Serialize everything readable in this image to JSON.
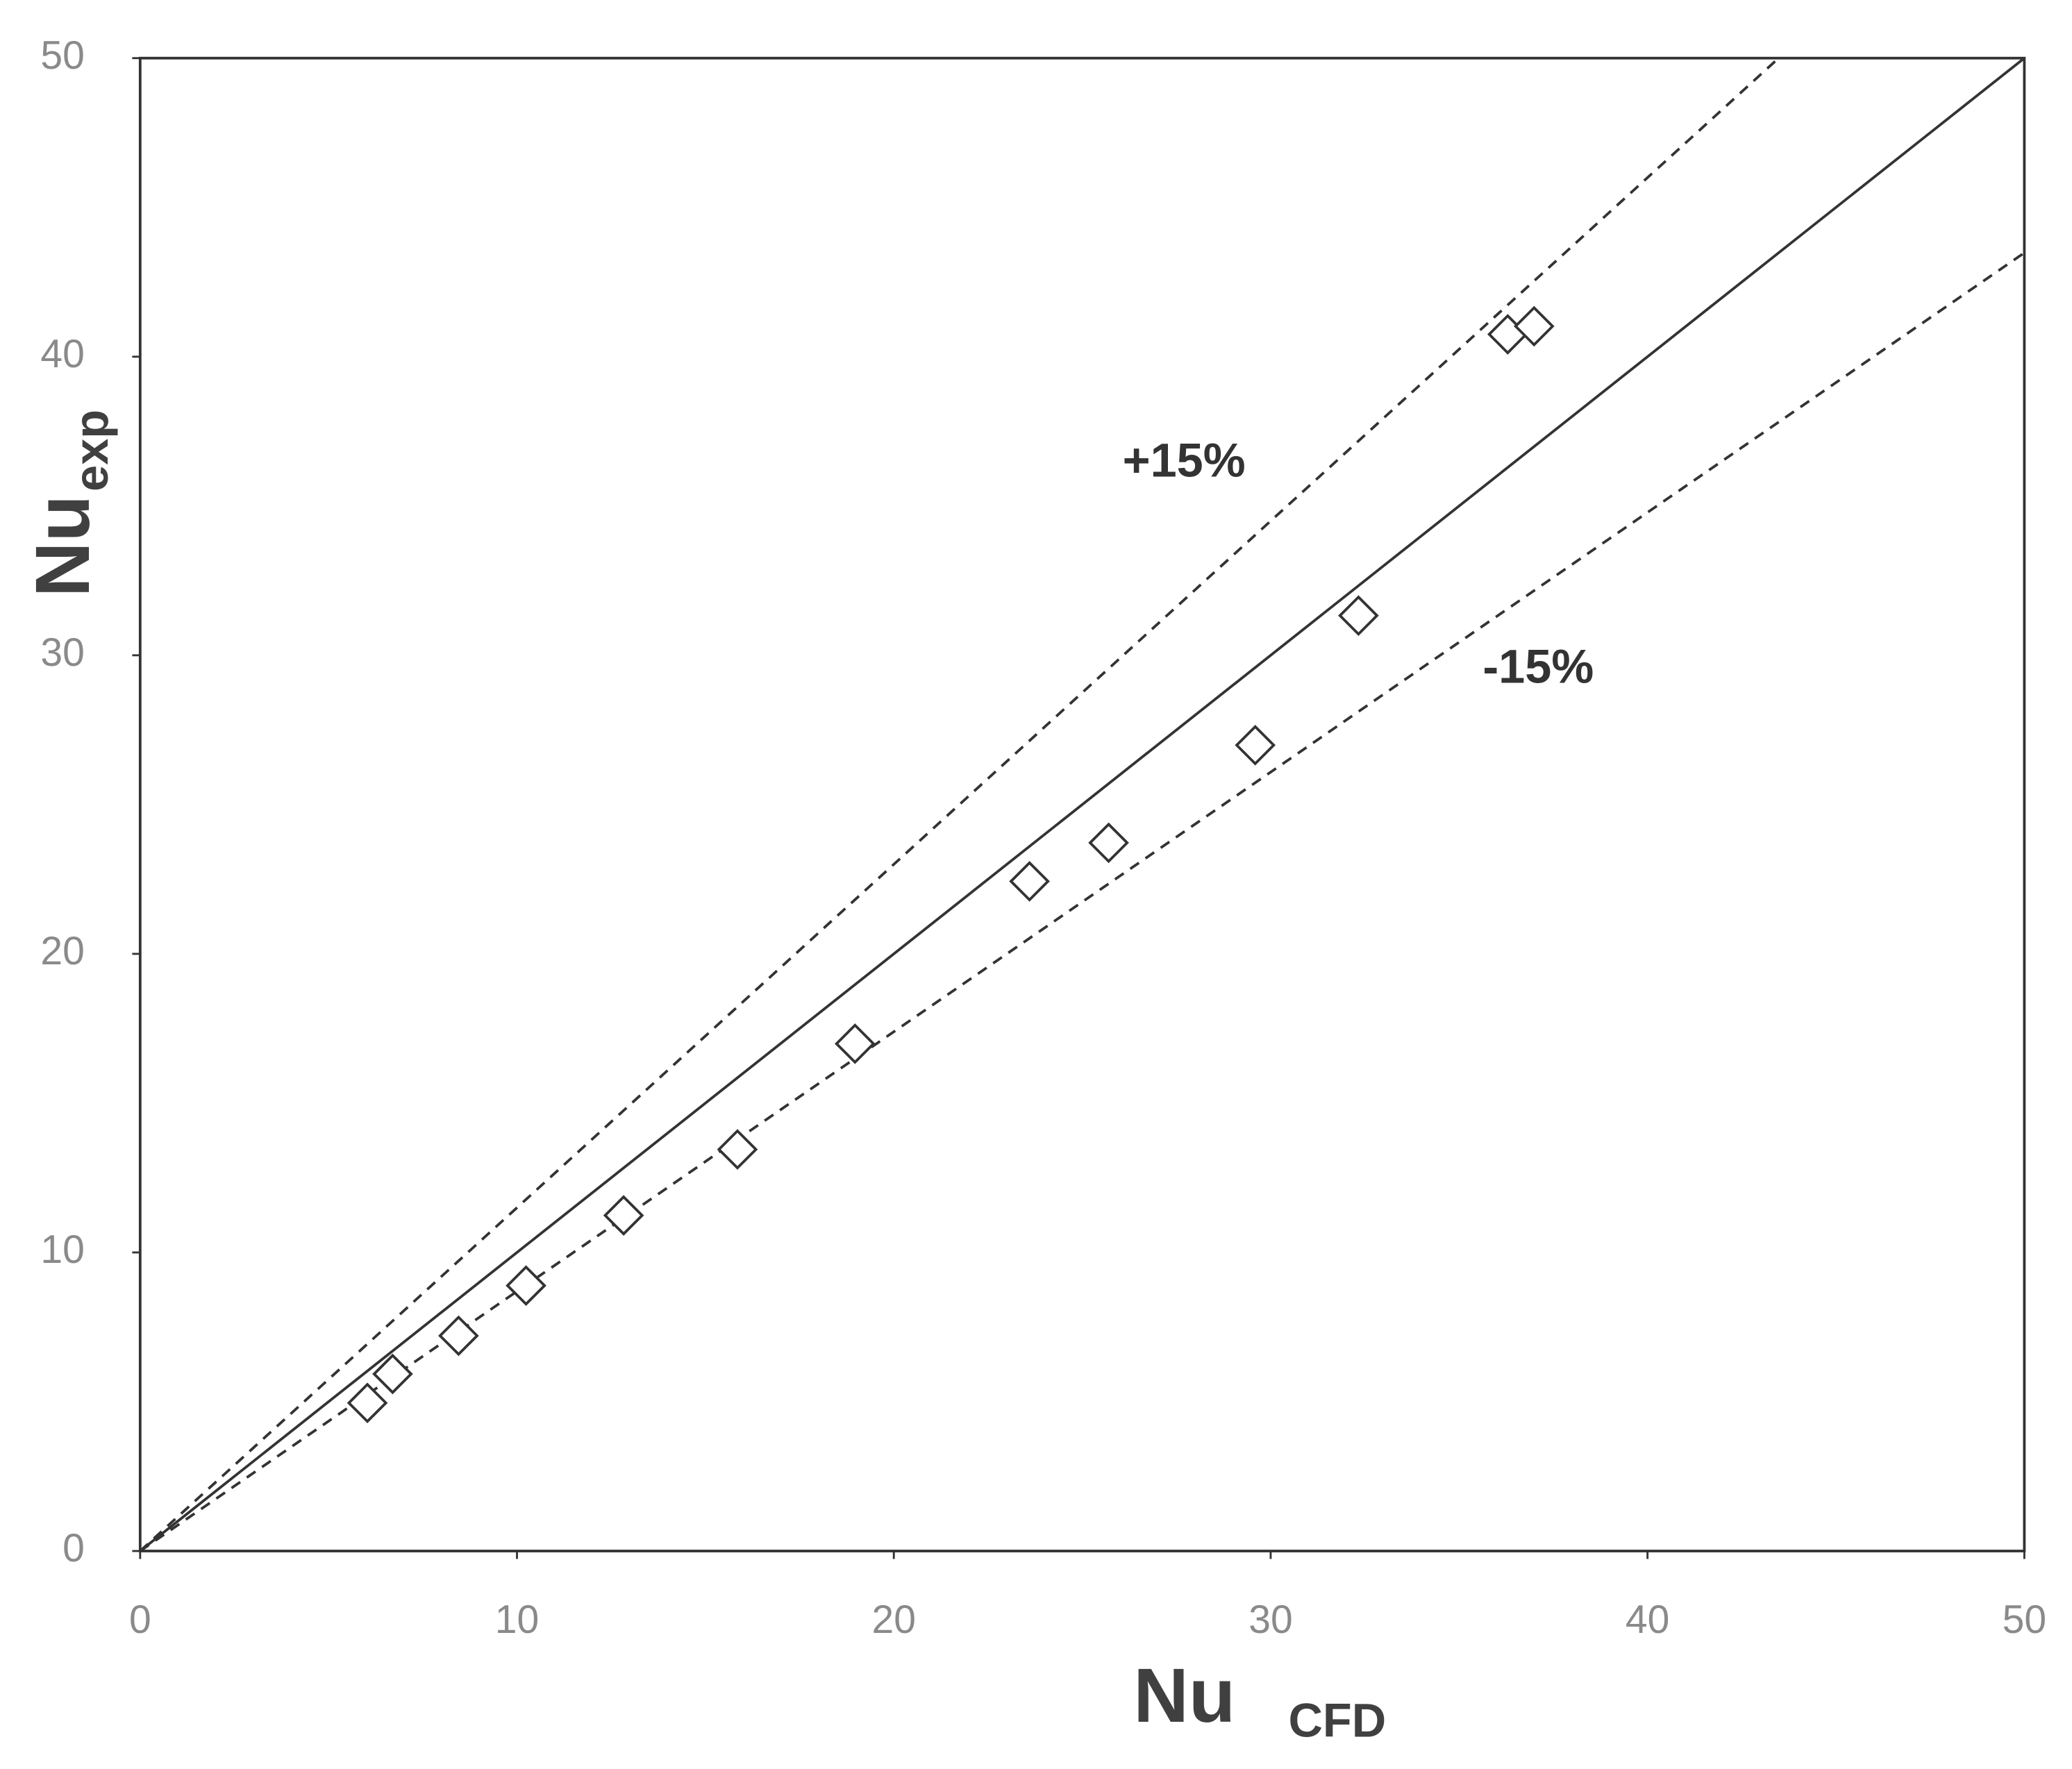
{
  "chart_data": {
    "type": "scatter",
    "xlabel": "Nu",
    "xlabel_sub": "CFD",
    "ylabel": "Nu",
    "ylabel_sub": "exp",
    "xlim": [
      0,
      50
    ],
    "ylim": [
      0,
      50
    ],
    "xticks": [
      0,
      10,
      20,
      30,
      40,
      50
    ],
    "yticks": [
      0,
      10,
      20,
      30,
      40,
      50
    ],
    "grid": false,
    "annotations": [
      {
        "text": "+15%",
        "x": 27.7,
        "y": 36.4
      },
      {
        "text": "-15%",
        "x": 37.1,
        "y": 29.5
      }
    ],
    "series": [
      {
        "mode": "line",
        "dash": false,
        "color": "#333333",
        "x": [
          0,
          50
        ],
        "values": [
          0,
          50
        ]
      },
      {
        "mode": "line",
        "dash": true,
        "color": "#333333",
        "x": [
          0,
          43.48
        ],
        "values": [
          0,
          50
        ]
      },
      {
        "mode": "line",
        "dash": true,
        "color": "#333333",
        "x": [
          0,
          50
        ],
        "values": [
          0,
          43.48
        ]
      },
      {
        "mode": "markers",
        "color": "#333333",
        "x": [
          6.03,
          6.7,
          8.45,
          10.24,
          12.83,
          15.85,
          18.97,
          23.6,
          25.7,
          29.59,
          32.33,
          36.29,
          36.99
        ],
        "values": [
          4.96,
          5.93,
          7.21,
          8.89,
          11.24,
          13.45,
          16.99,
          22.43,
          23.72,
          26.99,
          31.33,
          40.75,
          41.02
        ]
      }
    ]
  }
}
